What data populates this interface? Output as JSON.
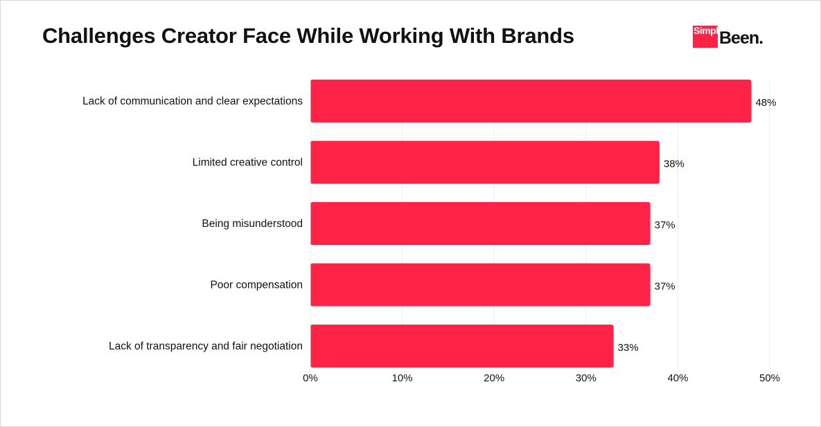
{
  "header": {
    "title": "Challenges Creator Face While Working With Brands"
  },
  "logo": {
    "box_text": "Simple",
    "word": "Been.",
    "brand_color": "#ff2348"
  },
  "chart_data": {
    "type": "bar",
    "orientation": "horizontal",
    "title": "Challenges Creator Face While Working With Brands",
    "xlabel": "",
    "ylabel": "",
    "categories": [
      "Lack of communication and clear expectations",
      "Limited creative control",
      "Being misunderstood",
      "Poor compensation",
      "Lack of transparency and fair negotiation"
    ],
    "values": [
      48,
      38,
      37,
      37,
      33
    ],
    "value_labels": [
      "48%",
      "38%",
      "37%",
      "37%",
      "33%"
    ],
    "xlim": [
      0,
      50
    ],
    "ticks": [
      0,
      10,
      20,
      30,
      40,
      50
    ],
    "tick_labels": [
      "0%",
      "10%",
      "20%",
      "30%",
      "40%",
      "50%"
    ],
    "grid": "vertical",
    "legend": "none",
    "bar_color": "#ff2348"
  }
}
